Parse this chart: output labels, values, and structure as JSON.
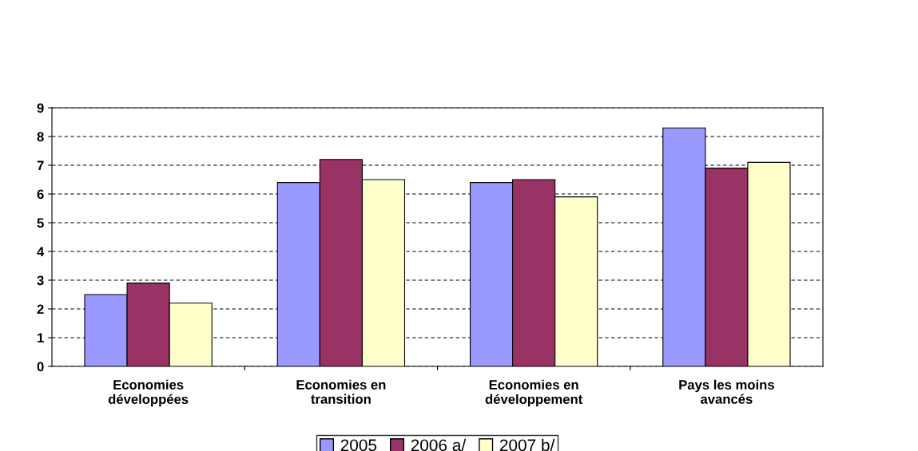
{
  "chart_data": {
    "type": "bar",
    "categories": [
      "Economies\ndéveloppées",
      "Economies en\ntransition",
      "Economies en\ndéveloppement",
      "Pays les moins\navancés"
    ],
    "series": [
      {
        "name": "2005",
        "color": "#9999ff",
        "values": [
          2.5,
          6.4,
          6.4,
          8.3
        ]
      },
      {
        "name": "2006 a/",
        "color": "#993366",
        "values": [
          2.9,
          7.2,
          6.5,
          6.9
        ]
      },
      {
        "name": "2007 b/",
        "color": "#ffffcc",
        "values": [
          2.2,
          6.5,
          5.9,
          7.1
        ]
      }
    ],
    "ylim": [
      0,
      9
    ],
    "yticks": [
      0,
      1,
      2,
      3,
      4,
      5,
      6,
      7,
      8,
      9
    ],
    "grid": "y",
    "legend": "bottom"
  }
}
